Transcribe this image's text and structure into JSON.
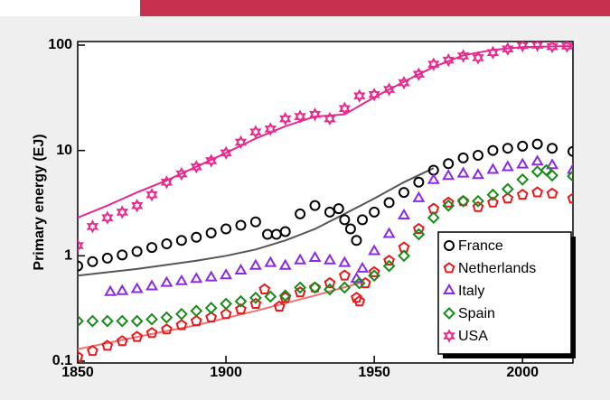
{
  "chart_data": {
    "type": "scatter",
    "ylabel": "Primary energy (EJ)",
    "log_y": true,
    "xlim": [
      1850,
      2017
    ],
    "xticks": [
      1850,
      1900,
      1950,
      2000
    ],
    "ylim": [
      0.1,
      100
    ],
    "yticks": [
      0.1,
      1,
      10,
      100
    ],
    "legend": "lower right",
    "series": [
      {
        "name": "France",
        "color": "#000000",
        "marker": "circle",
        "x": [
          1850,
          1855,
          1860,
          1865,
          1870,
          1875,
          1880,
          1885,
          1890,
          1895,
          1900,
          1905,
          1910,
          1914,
          1917,
          1920,
          1925,
          1930,
          1935,
          1938,
          1940,
          1942,
          1944,
          1946,
          1950,
          1955,
          1960,
          1965,
          1970,
          1975,
          1980,
          1985,
          1990,
          1995,
          2000,
          2005,
          2010,
          2017
        ],
        "values": [
          0.8,
          0.88,
          0.95,
          1.02,
          1.1,
          1.2,
          1.3,
          1.4,
          1.5,
          1.65,
          1.8,
          1.95,
          2.1,
          1.6,
          1.6,
          1.7,
          2.5,
          3.0,
          2.6,
          2.8,
          2.2,
          1.8,
          1.4,
          2.2,
          2.6,
          3.2,
          4.0,
          5.0,
          6.5,
          7.5,
          8.5,
          9.0,
          10,
          10.5,
          11,
          11.5,
          10.5,
          9.8
        ]
      },
      {
        "name": "Netherlands",
        "color": "#e8191c",
        "marker": "pentagon",
        "x": [
          1850,
          1855,
          1860,
          1865,
          1870,
          1875,
          1880,
          1885,
          1890,
          1895,
          1900,
          1905,
          1910,
          1913,
          1918,
          1920,
          1925,
          1930,
          1935,
          1940,
          1944,
          1945,
          1947,
          1950,
          1955,
          1960,
          1965,
          1970,
          1975,
          1980,
          1985,
          1990,
          1995,
          2000,
          2005,
          2010,
          2017
        ],
        "values": [
          0.11,
          0.125,
          0.14,
          0.155,
          0.17,
          0.185,
          0.2,
          0.22,
          0.24,
          0.26,
          0.28,
          0.31,
          0.35,
          0.48,
          0.33,
          0.4,
          0.45,
          0.5,
          0.55,
          0.65,
          0.4,
          0.37,
          0.55,
          0.7,
          0.9,
          1.2,
          1.8,
          2.8,
          3.2,
          3.3,
          2.9,
          3.2,
          3.5,
          3.8,
          4.0,
          3.9,
          3.5
        ]
      },
      {
        "name": "Italy",
        "color": "#8a2be2",
        "marker": "triangle",
        "x": [
          1861,
          1865,
          1870,
          1875,
          1880,
          1885,
          1890,
          1895,
          1900,
          1905,
          1910,
          1915,
          1920,
          1925,
          1930,
          1935,
          1940,
          1944,
          1946,
          1950,
          1955,
          1960,
          1965,
          1970,
          1975,
          1980,
          1985,
          1990,
          1995,
          2000,
          2005,
          2010,
          2017
        ],
        "values": [
          0.45,
          0.46,
          0.48,
          0.51,
          0.55,
          0.57,
          0.6,
          0.62,
          0.65,
          0.72,
          0.8,
          0.85,
          0.8,
          0.9,
          0.95,
          0.9,
          0.85,
          0.6,
          0.75,
          1.1,
          1.6,
          2.4,
          3.5,
          5.2,
          5.7,
          6.0,
          5.8,
          6.5,
          6.9,
          7.3,
          7.8,
          7.2,
          6.5
        ]
      },
      {
        "name": "Spain",
        "color": "#1a8a1a",
        "marker": "diamond",
        "x": [
          1850,
          1855,
          1860,
          1865,
          1870,
          1875,
          1880,
          1885,
          1890,
          1895,
          1900,
          1905,
          1910,
          1915,
          1920,
          1925,
          1930,
          1935,
          1940,
          1945,
          1950,
          1955,
          1960,
          1965,
          1970,
          1975,
          1980,
          1985,
          1990,
          1995,
          2000,
          2005,
          2008,
          2010,
          2017
        ],
        "values": [
          0.24,
          0.24,
          0.24,
          0.24,
          0.24,
          0.25,
          0.26,
          0.28,
          0.3,
          0.32,
          0.35,
          0.37,
          0.4,
          0.41,
          0.42,
          0.5,
          0.5,
          0.48,
          0.5,
          0.55,
          0.65,
          0.8,
          1.0,
          1.6,
          2.3,
          3.0,
          3.3,
          3.3,
          3.8,
          4.3,
          5.3,
          6.3,
          6.5,
          5.8,
          5.7
        ]
      },
      {
        "name": "USA",
        "color": "#e8288c",
        "marker": "star",
        "x": [
          1850,
          1855,
          1860,
          1865,
          1870,
          1875,
          1880,
          1885,
          1890,
          1895,
          1900,
          1905,
          1910,
          1915,
          1920,
          1925,
          1930,
          1935,
          1940,
          1945,
          1950,
          1955,
          1960,
          1965,
          1970,
          1975,
          1980,
          1985,
          1990,
          1995,
          2000,
          2005,
          2010,
          2015
        ],
        "values": [
          1.25,
          1.9,
          2.3,
          2.6,
          3.0,
          3.8,
          5,
          6,
          7,
          8,
          9.5,
          12,
          15,
          16,
          20,
          21,
          22,
          20,
          25,
          33,
          34,
          38,
          44,
          53,
          66,
          72,
          79,
          76,
          85,
          92,
          99,
          100,
          97,
          98
        ]
      }
    ],
    "fit_lines": [
      {
        "color": "#555555",
        "x": [
          1850,
          1870,
          1890,
          1900,
          1910,
          1920,
          1930,
          1940,
          1950,
          1960,
          1970
        ],
        "values": [
          0.65,
          0.75,
          0.9,
          1.0,
          1.15,
          1.4,
          1.8,
          2.5,
          3.5,
          5,
          6.8
        ]
      },
      {
        "color": "#e8288c",
        "x": [
          1850,
          1860,
          1870,
          1880,
          1890,
          1900,
          1910,
          1920,
          1930,
          1940,
          1950,
          1960,
          1970,
          1980,
          1990,
          2000,
          2017
        ],
        "values": [
          2.3,
          3.0,
          4.0,
          5.2,
          7,
          9.5,
          13,
          17,
          21,
          22,
          32,
          45,
          62,
          80,
          90,
          96,
          98
        ]
      },
      {
        "color": "#f07070",
        "x": [
          1850,
          1870,
          1890,
          1910,
          1930,
          1945
        ],
        "values": [
          0.13,
          0.17,
          0.22,
          0.3,
          0.42,
          0.55
        ]
      }
    ]
  }
}
